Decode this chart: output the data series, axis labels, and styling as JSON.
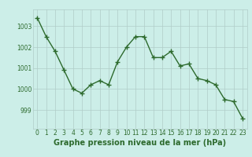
{
  "x": [
    0,
    1,
    2,
    3,
    4,
    5,
    6,
    7,
    8,
    9,
    10,
    11,
    12,
    13,
    14,
    15,
    16,
    17,
    18,
    19,
    20,
    21,
    22,
    23
  ],
  "y": [
    1003.4,
    1002.5,
    1001.8,
    1000.9,
    1000.0,
    999.8,
    1000.2,
    1000.4,
    1000.2,
    1001.3,
    1002.0,
    1002.5,
    1002.5,
    1001.5,
    1001.5,
    1001.8,
    1001.1,
    1001.2,
    1000.5,
    1000.4,
    1000.2,
    999.5,
    999.4,
    998.6
  ],
  "line_color": "#2d6a2d",
  "marker": "+",
  "marker_size": 4,
  "linewidth": 1.0,
  "bg_color": "#cceee8",
  "grid_color": "#b0ccc8",
  "xlabel": "Graphe pression niveau de la mer (hPa)",
  "xlabel_fontsize": 7,
  "xlabel_color": "#2d6a2d",
  "yticks": [
    999,
    1000,
    1001,
    1002,
    1003
  ],
  "xticks": [
    0,
    1,
    2,
    3,
    4,
    5,
    6,
    7,
    8,
    9,
    10,
    11,
    12,
    13,
    14,
    15,
    16,
    17,
    18,
    19,
    20,
    21,
    22,
    23
  ],
  "tick_fontsize": 5.5,
  "tick_color": "#2d6a2d",
  "ylim": [
    998.1,
    1003.8
  ],
  "xlim": [
    -0.5,
    23.5
  ]
}
